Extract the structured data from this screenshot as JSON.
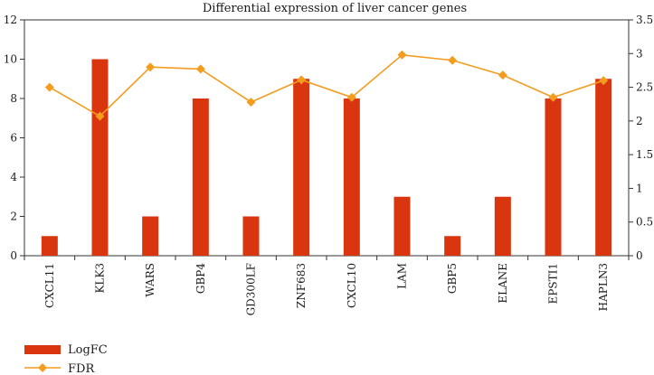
{
  "chart_data": {
    "type": "bar+line",
    "title": "Differential expression of liver cancer genes",
    "categories": [
      "CXCL11",
      "KLK3",
      "WARS",
      "GBP4",
      "GD300LF",
      "ZNF683",
      "CXCL10",
      "LAM",
      "GBP5",
      "ELANE",
      "EPSTI1",
      "HAPLN3"
    ],
    "series": [
      {
        "name": "LogFC",
        "type": "bar",
        "axis": "left",
        "color": "#d9360f",
        "values": [
          1,
          10,
          2,
          8,
          2,
          9,
          8,
          3,
          1,
          3,
          8,
          9
        ]
      },
      {
        "name": "FDR",
        "type": "line",
        "axis": "right",
        "color": "#f39c1e",
        "values": [
          2.5,
          2.07,
          2.8,
          2.77,
          2.28,
          2.61,
          2.35,
          2.98,
          2.9,
          2.68,
          2.35,
          2.6
        ]
      }
    ],
    "y_left": {
      "min": 0,
      "max": 12,
      "ticks": [
        "0",
        "2",
        "4",
        "6",
        "8",
        "10",
        "12"
      ]
    },
    "y_right": {
      "min": 0,
      "max": 3.5,
      "ticks": [
        "0",
        "0.5",
        "1",
        "1.5",
        "2",
        "2.5",
        "3",
        "3.5"
      ]
    },
    "legend": {
      "position": "bottom-left",
      "items": [
        "LogFC",
        "FDR"
      ]
    }
  }
}
